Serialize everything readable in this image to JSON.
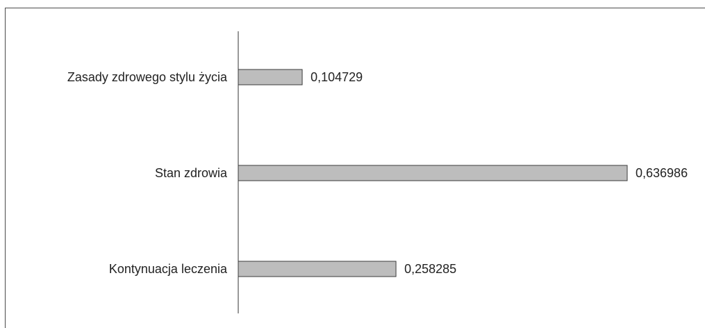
{
  "chart_data": {
    "type": "bar",
    "orientation": "horizontal",
    "categories": [
      "Zasady zdrowego stylu życia",
      "Stan zdrowia",
      "Kontynuacja leczenia"
    ],
    "values": [
      0.104729,
      0.636986,
      0.258285
    ],
    "value_labels": [
      "0,104729",
      "0,636986",
      "0,258285"
    ],
    "title": "",
    "xlabel": "",
    "ylabel": "",
    "xlim": [
      0,
      0.65
    ],
    "grid": false,
    "legend": "none",
    "bar_color": "#bdbdbd",
    "bar_edge_color": "#3a3a3a"
  }
}
